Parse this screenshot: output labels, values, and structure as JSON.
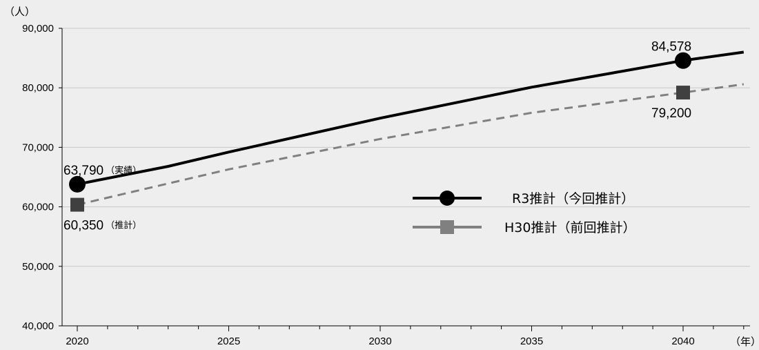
{
  "chart_data": {
    "type": "line",
    "x_unit": "（年）",
    "y_unit": "（人）",
    "ylim": [
      40000,
      90000
    ],
    "xlim": [
      2020,
      2042
    ],
    "y_ticks": [
      40000,
      50000,
      60000,
      70000,
      80000,
      90000
    ],
    "y_tick_labels": [
      "40,000",
      "50,000",
      "60,000",
      "70,000",
      "80,000",
      "90,000"
    ],
    "x_ticks": [
      2020,
      2025,
      2030,
      2035,
      2040
    ],
    "x_tick_labels": [
      "2020",
      "2025",
      "2030",
      "2035",
      "2040"
    ],
    "grid": true,
    "legend_position": "center-right",
    "series": [
      {
        "name": "R3推計（今回推計）",
        "color": "#000000",
        "line_style": "solid",
        "marker": "circle",
        "x": [
          2020,
          2023,
          2025,
          2030,
          2035,
          2040,
          2042
        ],
        "y": [
          63790,
          66800,
          69200,
          74900,
          80100,
          84578,
          86000
        ]
      },
      {
        "name": "H30推計（前回推計）",
        "color": "#808080",
        "marker_color": "#404040",
        "line_style": "dashed",
        "marker": "square",
        "x": [
          2020,
          2025,
          2030,
          2035,
          2040,
          2042
        ],
        "y": [
          60350,
          66300,
          71400,
          75800,
          79200,
          80600
        ]
      }
    ],
    "annotations": [
      {
        "series": 0,
        "x": 2020,
        "value_label": "63,790",
        "note": "（実績）"
      },
      {
        "series": 1,
        "x": 2020,
        "value_label": "60,350",
        "note": "（推計）"
      },
      {
        "series": 0,
        "x": 2040,
        "value_label": "84,578",
        "note": ""
      },
      {
        "series": 1,
        "x": 2040,
        "value_label": "79,200",
        "note": ""
      }
    ]
  }
}
